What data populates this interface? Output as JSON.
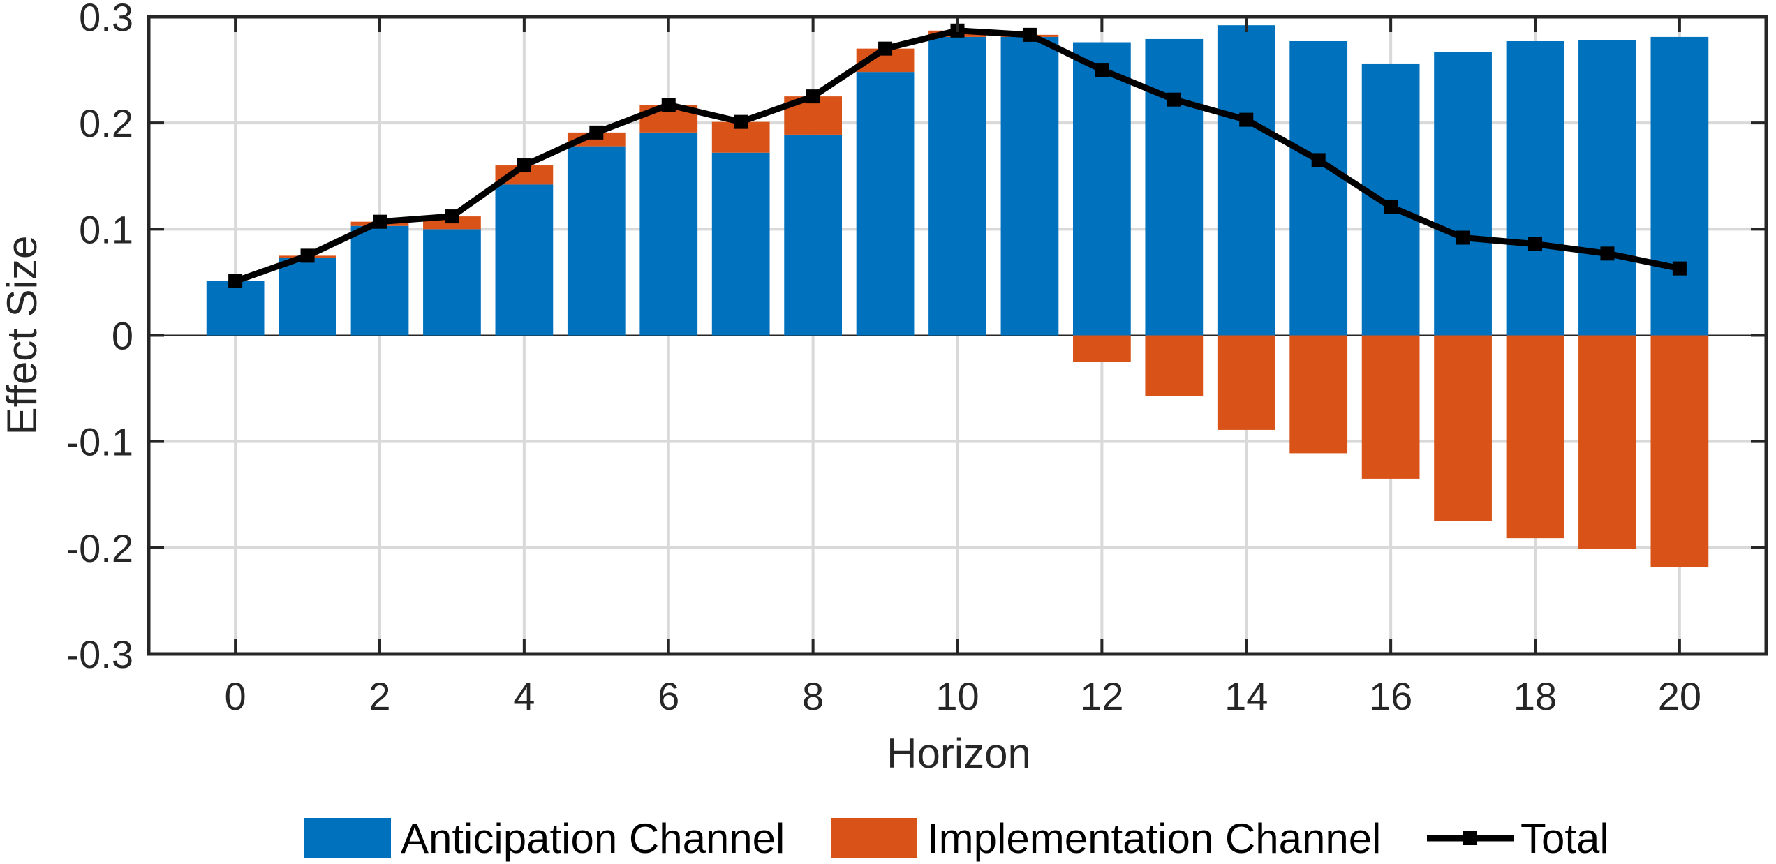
{
  "chart_data": {
    "type": "bar",
    "stacked": true,
    "title": "",
    "xlabel": "Horizon",
    "ylabel": "Effect Size",
    "x": [
      0,
      1,
      2,
      3,
      4,
      5,
      6,
      7,
      8,
      9,
      10,
      11,
      12,
      13,
      14,
      15,
      16,
      17,
      18,
      19,
      20
    ],
    "xticks": [
      "0",
      "2",
      "4",
      "6",
      "8",
      "10",
      "12",
      "14",
      "16",
      "18",
      "20"
    ],
    "ylim": [
      -0.3,
      0.3
    ],
    "yticks": [
      "-0.3",
      "-0.2",
      "-0.1",
      "0",
      "0.1",
      "0.2",
      "0.3"
    ],
    "grid": true,
    "legend_placement": "bottom",
    "series": [
      {
        "name": "Anticipation Channel",
        "kind": "bar",
        "color": "#0072BD",
        "values": [
          0.051,
          0.073,
          0.103,
          0.1,
          0.142,
          0.178,
          0.191,
          0.172,
          0.189,
          0.248,
          0.281,
          0.281,
          0.276,
          0.279,
          0.292,
          0.277,
          0.256,
          0.267,
          0.277,
          0.278,
          0.281
        ]
      },
      {
        "name": "Implementation Channel",
        "kind": "bar",
        "color": "#D95319",
        "values": [
          0.0,
          0.002,
          0.004,
          0.012,
          0.018,
          0.013,
          0.026,
          0.029,
          0.036,
          0.022,
          0.006,
          0.002,
          -0.025,
          -0.057,
          -0.089,
          -0.111,
          -0.135,
          -0.175,
          -0.191,
          -0.201,
          -0.218
        ]
      },
      {
        "name": "Total",
        "kind": "line",
        "color": "#000000",
        "values": [
          0.051,
          0.075,
          0.107,
          0.112,
          0.16,
          0.191,
          0.217,
          0.201,
          0.225,
          0.27,
          0.287,
          0.283,
          0.25,
          0.222,
          0.203,
          0.165,
          0.121,
          0.092,
          0.086,
          0.077,
          0.063
        ]
      }
    ]
  }
}
